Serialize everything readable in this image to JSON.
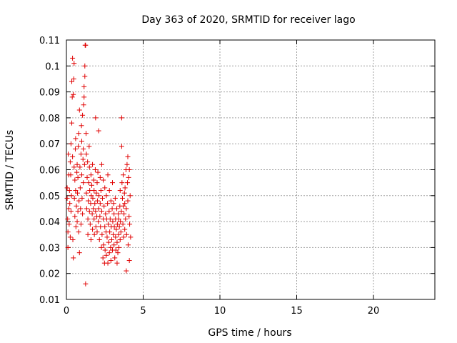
{
  "chart_data": {
    "type": "scatter",
    "title": "Day 363 of 2020, SRMTID for receiver lago",
    "xlabel": "GPS time / hours",
    "ylabel": "SRMTID / TECUs",
    "xlim": [
      0,
      24
    ],
    "ylim": [
      0.01,
      0.11
    ],
    "x_ticks": [
      0,
      5,
      10,
      15,
      20
    ],
    "y_ticks": [
      0.01,
      0.02,
      0.03,
      0.04,
      0.05,
      0.06,
      0.07,
      0.08,
      0.09,
      0.1,
      0.11
    ],
    "x_tick_labels": [
      "0",
      "5",
      "10",
      "15",
      "20"
    ],
    "y_tick_labels": [
      "0.01",
      "0.02",
      "0.03",
      "0.04",
      "0.05",
      "0.06",
      "0.07",
      "0.08",
      "0.09",
      "0.1",
      "0.11"
    ],
    "grid": true,
    "marker": "+",
    "color": "#e00000",
    "points": [
      [
        0.05,
        0.053
      ],
      [
        0.05,
        0.049
      ],
      [
        0.08,
        0.041
      ],
      [
        0.1,
        0.036
      ],
      [
        0.1,
        0.03
      ],
      [
        0.12,
        0.066
      ],
      [
        0.15,
        0.058
      ],
      [
        0.15,
        0.045
      ],
      [
        0.18,
        0.039
      ],
      [
        0.2,
        0.052
      ],
      [
        0.22,
        0.047
      ],
      [
        0.25,
        0.063
      ],
      [
        0.25,
        0.034
      ],
      [
        0.28,
        0.058
      ],
      [
        0.3,
        0.07
      ],
      [
        0.3,
        0.044
      ],
      [
        0.33,
        0.05
      ],
      [
        0.35,
        0.078
      ],
      [
        0.35,
        0.094
      ],
      [
        0.38,
        0.088
      ],
      [
        0.4,
        0.103
      ],
      [
        0.4,
        0.065
      ],
      [
        0.42,
        0.033
      ],
      [
        0.45,
        0.026
      ],
      [
        0.45,
        0.089
      ],
      [
        0.48,
        0.095
      ],
      [
        0.5,
        0.101
      ],
      [
        0.5,
        0.061
      ],
      [
        0.52,
        0.049
      ],
      [
        0.55,
        0.042
      ],
      [
        0.55,
        0.056
      ],
      [
        0.58,
        0.068
      ],
      [
        0.6,
        0.072
      ],
      [
        0.6,
        0.052
      ],
      [
        0.62,
        0.038
      ],
      [
        0.65,
        0.046
      ],
      [
        0.68,
        0.059
      ],
      [
        0.7,
        0.062
      ],
      [
        0.7,
        0.04
      ],
      [
        0.72,
        0.051
      ],
      [
        0.75,
        0.057
      ],
      [
        0.75,
        0.044
      ],
      [
        0.78,
        0.069
      ],
      [
        0.8,
        0.074
      ],
      [
        0.8,
        0.036
      ],
      [
        0.82,
        0.048
      ],
      [
        0.85,
        0.028
      ],
      [
        0.85,
        0.083
      ],
      [
        0.88,
        0.061
      ],
      [
        0.9,
        0.053
      ],
      [
        0.92,
        0.045
      ],
      [
        0.95,
        0.066
      ],
      [
        0.95,
        0.039
      ],
      [
        0.98,
        0.077
      ],
      [
        1.0,
        0.071
      ],
      [
        1.0,
        0.058
      ],
      [
        1.02,
        0.049
      ],
      [
        1.05,
        0.081
      ],
      [
        1.05,
        0.043
      ],
      [
        1.08,
        0.064
      ],
      [
        1.1,
        0.068
      ],
      [
        1.1,
        0.055
      ],
      [
        1.12,
        0.085
      ],
      [
        1.15,
        0.088
      ],
      [
        1.15,
        0.092
      ],
      [
        1.18,
        0.062
      ],
      [
        1.2,
        0.096
      ],
      [
        1.2,
        0.1
      ],
      [
        1.22,
        0.108
      ],
      [
        1.25,
        0.108
      ],
      [
        1.25,
        0.016
      ],
      [
        1.28,
        0.074
      ],
      [
        1.3,
        0.066
      ],
      [
        1.3,
        0.051
      ],
      [
        1.32,
        0.045
      ],
      [
        1.35,
        0.057
      ],
      [
        1.38,
        0.063
      ],
      [
        1.4,
        0.041
      ],
      [
        1.4,
        0.035
      ],
      [
        1.42,
        0.048
      ],
      [
        1.45,
        0.055
      ],
      [
        1.48,
        0.069
      ],
      [
        1.5,
        0.061
      ],
      [
        1.5,
        0.044
      ],
      [
        1.52,
        0.052
      ],
      [
        1.55,
        0.039
      ],
      [
        1.58,
        0.047
      ],
      [
        1.6,
        0.058
      ],
      [
        1.6,
        0.033
      ],
      [
        1.62,
        0.05
      ],
      [
        1.65,
        0.054
      ],
      [
        1.68,
        0.043
      ],
      [
        1.7,
        0.062
      ],
      [
        1.7,
        0.037
      ],
      [
        1.72,
        0.049
      ],
      [
        1.75,
        0.045
      ],
      [
        1.78,
        0.056
      ],
      [
        1.8,
        0.041
      ],
      [
        1.8,
        0.052
      ],
      [
        1.82,
        0.035
      ],
      [
        1.85,
        0.047
      ],
      [
        1.88,
        0.06
      ],
      [
        1.9,
        0.044
      ],
      [
        1.9,
        0.08
      ],
      [
        1.92,
        0.038
      ],
      [
        1.95,
        0.051
      ],
      [
        1.98,
        0.042
      ],
      [
        2.0,
        0.055
      ],
      [
        2.0,
        0.036
      ],
      [
        2.02,
        0.048
      ],
      [
        2.05,
        0.059
      ],
      [
        2.08,
        0.04
      ],
      [
        2.1,
        0.045
      ],
      [
        2.1,
        0.075
      ],
      [
        2.12,
        0.05
      ],
      [
        2.15,
        0.033
      ],
      [
        2.18,
        0.042
      ],
      [
        2.2,
        0.047
      ],
      [
        2.2,
        0.057
      ],
      [
        2.22,
        0.038
      ],
      [
        2.25,
        0.052
      ],
      [
        2.28,
        0.03
      ],
      [
        2.3,
        0.044
      ],
      [
        2.3,
        0.062
      ],
      [
        2.32,
        0.035
      ],
      [
        2.35,
        0.049
      ],
      [
        2.38,
        0.026
      ],
      [
        2.4,
        0.041
      ],
      [
        2.4,
        0.056
      ],
      [
        2.42,
        0.031
      ],
      [
        2.45,
        0.046
      ],
      [
        2.48,
        0.024
      ],
      [
        2.5,
        0.038
      ],
      [
        2.5,
        0.053
      ],
      [
        2.52,
        0.029
      ],
      [
        2.55,
        0.043
      ],
      [
        2.58,
        0.036
      ],
      [
        2.6,
        0.05
      ],
      [
        2.6,
        0.027
      ],
      [
        2.62,
        0.041
      ],
      [
        2.65,
        0.034
      ],
      [
        2.68,
        0.047
      ],
      [
        2.7,
        0.024
      ],
      [
        2.7,
        0.058
      ],
      [
        2.72,
        0.039
      ],
      [
        2.75,
        0.032
      ],
      [
        2.78,
        0.044
      ],
      [
        2.8,
        0.028
      ],
      [
        2.8,
        0.052
      ],
      [
        2.82,
        0.036
      ],
      [
        2.85,
        0.041
      ],
      [
        2.88,
        0.03
      ],
      [
        2.9,
        0.048
      ],
      [
        2.9,
        0.025
      ],
      [
        2.92,
        0.038
      ],
      [
        2.95,
        0.033
      ],
      [
        2.98,
        0.045
      ],
      [
        3.0,
        0.029
      ],
      [
        3.0,
        0.055
      ],
      [
        3.02,
        0.04
      ],
      [
        3.05,
        0.035
      ],
      [
        3.08,
        0.047
      ],
      [
        3.1,
        0.031
      ],
      [
        3.1,
        0.043
      ],
      [
        3.12,
        0.038
      ],
      [
        3.15,
        0.026
      ],
      [
        3.18,
        0.049
      ],
      [
        3.2,
        0.034
      ],
      [
        3.2,
        0.041
      ],
      [
        3.22,
        0.029
      ],
      [
        3.25,
        0.037
      ],
      [
        3.28,
        0.045
      ],
      [
        3.3,
        0.024
      ],
      [
        3.3,
        0.032
      ],
      [
        3.32,
        0.039
      ],
      [
        3.35,
        0.028
      ],
      [
        3.38,
        0.043
      ],
      [
        3.4,
        0.035
      ],
      [
        3.4,
        0.041
      ],
      [
        3.42,
        0.03
      ],
      [
        3.45,
        0.038
      ],
      [
        3.48,
        0.046
      ],
      [
        3.5,
        0.033
      ],
      [
        3.5,
        0.052
      ],
      [
        3.52,
        0.04
      ],
      [
        3.55,
        0.036
      ],
      [
        3.58,
        0.044
      ],
      [
        3.6,
        0.08
      ],
      [
        3.6,
        0.069
      ],
      [
        3.62,
        0.055
      ],
      [
        3.65,
        0.049
      ],
      [
        3.68,
        0.039
      ],
      [
        3.7,
        0.046
      ],
      [
        3.7,
        0.058
      ],
      [
        3.72,
        0.034
      ],
      [
        3.75,
        0.043
      ],
      [
        3.78,
        0.051
      ],
      [
        3.8,
        0.037
      ],
      [
        3.8,
        0.047
      ],
      [
        3.82,
        0.053
      ],
      [
        3.85,
        0.041
      ],
      [
        3.88,
        0.06
      ],
      [
        3.9,
        0.045
      ],
      [
        3.9,
        0.021
      ],
      [
        3.92,
        0.035
      ],
      [
        3.95,
        0.062
      ],
      [
        3.98,
        0.055
      ],
      [
        4.0,
        0.065
      ],
      [
        4.0,
        0.048
      ],
      [
        4.02,
        0.031
      ],
      [
        4.05,
        0.057
      ],
      [
        4.08,
        0.042
      ],
      [
        4.1,
        0.025
      ],
      [
        4.1,
        0.06
      ],
      [
        4.12,
        0.039
      ],
      [
        4.15,
        0.05
      ],
      [
        4.18,
        0.034
      ]
    ]
  }
}
